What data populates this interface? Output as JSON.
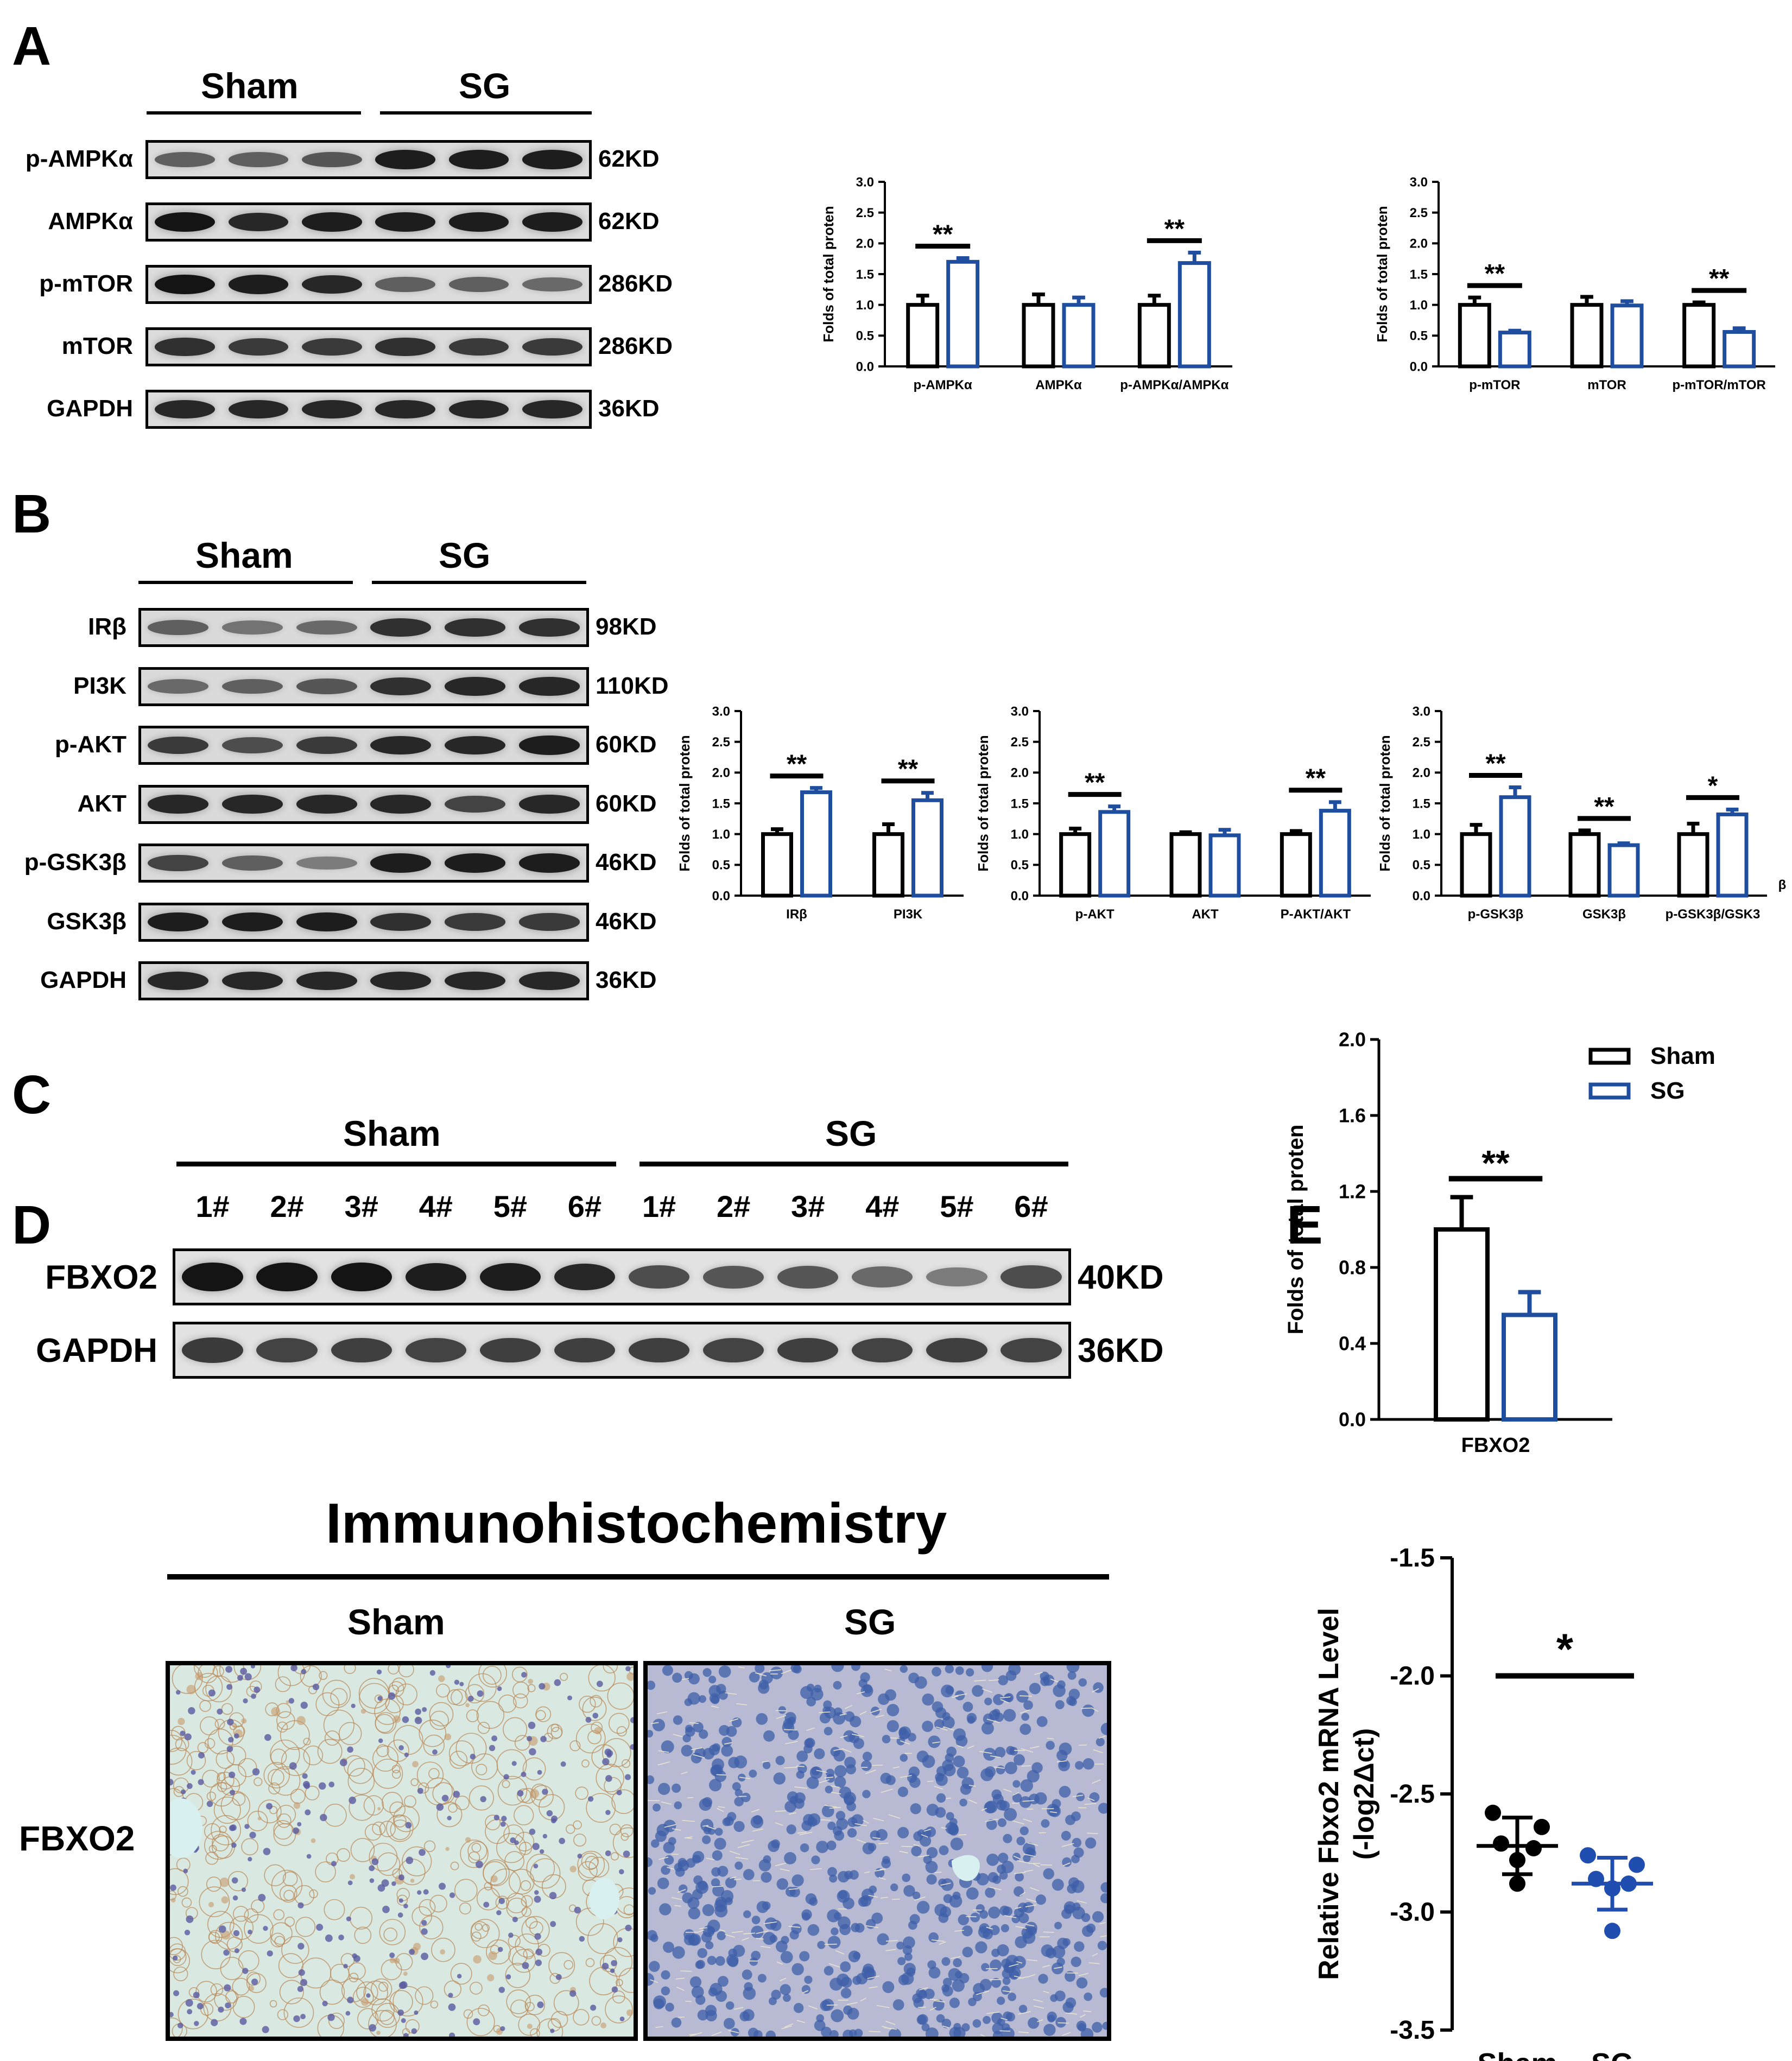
{
  "panels": {
    "A": {
      "label": "A",
      "groups": [
        "Sham",
        "SG"
      ],
      "blots": [
        {
          "protein": "p-AMPKα",
          "kd": "62KD",
          "intensity": [
            0.55,
            0.55,
            0.6,
            0.9,
            0.9,
            0.9
          ]
        },
        {
          "protein": "AMPKα",
          "kd": "62KD",
          "intensity": [
            0.95,
            0.85,
            0.9,
            0.9,
            0.9,
            0.9
          ]
        },
        {
          "protein": "p-mTOR",
          "kd": "286KD",
          "intensity": [
            0.95,
            0.9,
            0.85,
            0.55,
            0.55,
            0.5
          ]
        },
        {
          "protein": "mTOR",
          "kd": "286KD",
          "intensity": [
            0.8,
            0.75,
            0.75,
            0.8,
            0.75,
            0.75
          ]
        },
        {
          "protein": "GAPDH",
          "kd": "36KD",
          "intensity": [
            0.85,
            0.85,
            0.85,
            0.85,
            0.85,
            0.85
          ]
        }
      ]
    },
    "B": {
      "label": "B",
      "groups": [
        "Sham",
        "SG"
      ],
      "blots": [
        {
          "protein": "IRβ",
          "kd": "98KD",
          "intensity": [
            0.55,
            0.45,
            0.5,
            0.8,
            0.8,
            0.8
          ]
        },
        {
          "protein": "PI3K",
          "kd": "110KD",
          "intensity": [
            0.5,
            0.55,
            0.6,
            0.8,
            0.85,
            0.85
          ]
        },
        {
          "protein": "p-AKT",
          "kd": "60KD",
          "intensity": [
            0.75,
            0.65,
            0.75,
            0.85,
            0.85,
            0.9
          ]
        },
        {
          "protein": "AKT",
          "kd": "60KD",
          "intensity": [
            0.85,
            0.85,
            0.85,
            0.85,
            0.7,
            0.85
          ]
        },
        {
          "protein": "p-GSK3β",
          "kd": "46KD",
          "intensity": [
            0.7,
            0.55,
            0.4,
            0.9,
            0.9,
            0.9
          ]
        },
        {
          "protein": "GSK3β",
          "kd": "46KD",
          "intensity": [
            0.9,
            0.9,
            0.9,
            0.8,
            0.75,
            0.75
          ]
        },
        {
          "protein": "GAPDH",
          "kd": "36KD",
          "intensity": [
            0.85,
            0.85,
            0.85,
            0.85,
            0.85,
            0.85
          ]
        }
      ]
    },
    "C": {
      "label": "C",
      "groups": [
        "Sham",
        "SG"
      ],
      "lanes": [
        "1#",
        "2#",
        "3#",
        "4#",
        "5#",
        "6#",
        "1#",
        "2#",
        "3#",
        "4#",
        "5#",
        "6#"
      ],
      "blots": [
        {
          "protein": "FBXO2",
          "kd": "40KD",
          "intensity": [
            0.95,
            0.95,
            0.95,
            0.9,
            0.9,
            0.85,
            0.65,
            0.6,
            0.6,
            0.5,
            0.4,
            0.65
          ]
        },
        {
          "protein": "GAPDH",
          "kd": "36KD",
          "intensity": [
            0.75,
            0.7,
            0.72,
            0.7,
            0.72,
            0.72,
            0.72,
            0.7,
            0.72,
            0.7,
            0.72,
            0.7
          ]
        }
      ]
    },
    "D": {
      "label": "D",
      "title": "Immunohistochemistry",
      "groups": [
        "Sham",
        "SG"
      ],
      "row_label": "FBXO2"
    },
    "E": {
      "label": "E"
    }
  },
  "colors": {
    "sham": "#000000",
    "sg": "#1f4e9e",
    "tissue_sham": "#d8e6dd",
    "tissue_sg": "#a8aed0"
  },
  "chart_data": [
    {
      "id": "A1",
      "type": "bar",
      "ylabel": "Folds of total proten",
      "ylim": [
        0,
        3.0
      ],
      "yticks": [
        "0.0",
        "0.5",
        "1.0",
        "1.5",
        "2.0",
        "2.5",
        "3.0"
      ],
      "categories": [
        "p-AMPKα",
        "AMPKα",
        "p-AMPKα/AMPKα"
      ],
      "series": [
        {
          "name": "Sham",
          "values": [
            1.0,
            1.0,
            1.0
          ],
          "errors": [
            0.15,
            0.17,
            0.15
          ]
        },
        {
          "name": "SG",
          "values": [
            1.7,
            1.0,
            1.68
          ],
          "errors": [
            0.06,
            0.12,
            0.17
          ]
        }
      ],
      "significance": [
        "**",
        "",
        "**"
      ]
    },
    {
      "id": "A2",
      "type": "bar",
      "ylabel": "Folds of total proten",
      "ylim": [
        0,
        3.0
      ],
      "yticks": [
        "0.0",
        "0.5",
        "1.0",
        "1.5",
        "2.0",
        "2.5",
        "3.0"
      ],
      "categories": [
        "p-mTOR",
        "mTOR",
        "p-mTOR/mTOR"
      ],
      "series": [
        {
          "name": "Sham",
          "values": [
            1.0,
            1.0,
            1.0
          ],
          "errors": [
            0.12,
            0.13,
            0.04
          ]
        },
        {
          "name": "SG",
          "values": [
            0.55,
            0.99,
            0.56
          ],
          "errors": [
            0.03,
            0.07,
            0.06
          ]
        }
      ],
      "significance": [
        "**",
        "",
        "**"
      ]
    },
    {
      "id": "B1",
      "type": "bar",
      "ylabel": "Folds of total proten",
      "ylim": [
        0,
        3.0
      ],
      "yticks": [
        "0.0",
        "0.5",
        "1.0",
        "1.5",
        "2.0",
        "2.5",
        "3.0"
      ],
      "categories": [
        "IRβ",
        "PI3K"
      ],
      "series": [
        {
          "name": "Sham",
          "values": [
            1.0,
            1.0
          ],
          "errors": [
            0.08,
            0.16
          ]
        },
        {
          "name": "SG",
          "values": [
            1.68,
            1.55
          ],
          "errors": [
            0.07,
            0.12
          ]
        }
      ],
      "significance": [
        "**",
        "**"
      ]
    },
    {
      "id": "B2",
      "type": "bar",
      "ylabel": "Folds of total proten",
      "ylim": [
        0,
        3.0
      ],
      "yticks": [
        "0.0",
        "0.5",
        "1.0",
        "1.5",
        "2.0",
        "2.5",
        "3.0"
      ],
      "categories": [
        "p-AKT",
        "AKT",
        "P-AKT/AKT"
      ],
      "series": [
        {
          "name": "Sham",
          "values": [
            1.0,
            1.0,
            1.0
          ],
          "errors": [
            0.09,
            0.03,
            0.05
          ]
        },
        {
          "name": "SG",
          "values": [
            1.36,
            0.98,
            1.38
          ],
          "errors": [
            0.09,
            0.09,
            0.14
          ]
        }
      ],
      "significance": [
        "**",
        "",
        "**"
      ]
    },
    {
      "id": "B3",
      "type": "bar",
      "ylabel": "Folds of total proten",
      "ylim": [
        0,
        3.0
      ],
      "yticks": [
        "0.0",
        "0.5",
        "1.0",
        "1.5",
        "2.0",
        "2.5",
        "3.0"
      ],
      "categories": [
        "p-GSK3β",
        "GSK3β",
        "p-GSK3β/GSK3"
      ],
      "extra_label": "β",
      "series": [
        {
          "name": "Sham",
          "values": [
            1.0,
            1.0,
            1.0
          ],
          "errors": [
            0.15,
            0.06,
            0.17
          ]
        },
        {
          "name": "SG",
          "values": [
            1.6,
            0.82,
            1.32
          ],
          "errors": [
            0.16,
            0.03,
            0.08
          ]
        }
      ],
      "significance": [
        "**",
        "**",
        "*"
      ]
    },
    {
      "id": "C1",
      "type": "bar",
      "ylabel": "Folds of total proten",
      "ylim": [
        0,
        2.0
      ],
      "yticks": [
        "0.0",
        "0.4",
        "0.8",
        "1.2",
        "1.6",
        "2.0"
      ],
      "categories": [
        "FBXO2"
      ],
      "legend": [
        "Sham",
        "SG"
      ],
      "series": [
        {
          "name": "Sham",
          "values": [
            1.0
          ],
          "errors": [
            0.17
          ]
        },
        {
          "name": "SG",
          "values": [
            0.55
          ],
          "errors": [
            0.12
          ]
        }
      ],
      "significance": [
        "**"
      ]
    },
    {
      "id": "E1",
      "type": "scatter",
      "ylabel": "Relative Fbxo2 mRNA Level",
      "ylabel2": "(-log2Δct)",
      "ylim": [
        -3.5,
        -1.5
      ],
      "yticks": [
        "-1.5",
        "-2.0",
        "-2.5",
        "-3.0",
        "-3.5"
      ],
      "categories": [
        "Sham",
        "SG"
      ],
      "series": [
        {
          "name": "Sham",
          "points": [
            -2.58,
            -2.64,
            -2.71,
            -2.73,
            -2.78,
            -2.88
          ],
          "mean": -2.72,
          "sd": 0.12
        },
        {
          "name": "SG",
          "points": [
            -2.76,
            -2.8,
            -2.86,
            -2.88,
            -2.9,
            -3.08
          ],
          "mean": -2.88,
          "sd": 0.11
        }
      ],
      "significance": "*"
    }
  ]
}
